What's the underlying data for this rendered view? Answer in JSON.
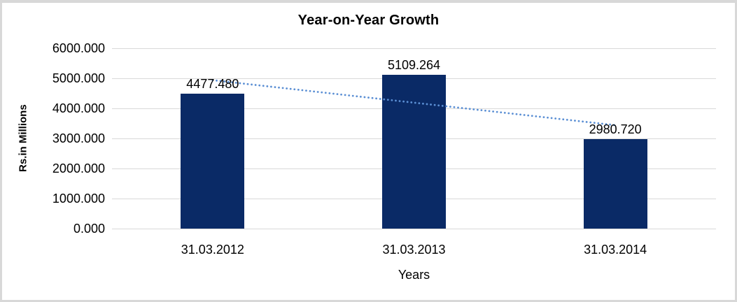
{
  "window": {
    "background": "#ffffff",
    "frame_border_color": "#d8d8d8"
  },
  "chart_data": {
    "type": "bar",
    "title": "Year-on-Year Growth",
    "xlabel": "Years",
    "ylabel": "Rs.in Millions",
    "categories": [
      "31.03.2012",
      "31.03.2013",
      "31.03.2014"
    ],
    "series": [
      {
        "name": "Rs.in Millions",
        "values": [
          4477.48,
          5109.264,
          2980.72
        ]
      }
    ],
    "data_labels": [
      "4477.480",
      "5109.264",
      "2980.720"
    ],
    "ylim": [
      0,
      6000
    ],
    "ytick_step": 1000,
    "ytick_labels_top_to_bottom": [
      "6000.000",
      "5000.000",
      "4000.000",
      "3000.000",
      "2000.000",
      "1000.000",
      "0.000"
    ],
    "grid": true,
    "legend": "none",
    "bar_color": "#0a2a66",
    "gridline_color": "#d9d9d9",
    "trendline": {
      "type": "linear",
      "style": "dotted",
      "color": "#5b8fd4",
      "applies_to": "Rs.in Millions"
    }
  }
}
